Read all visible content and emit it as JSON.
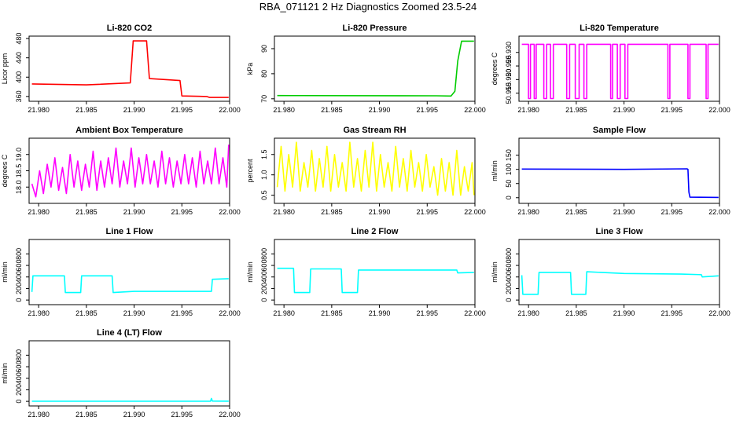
{
  "page": {
    "title": "RBA_071121  2 Hz Diagnostics Zoomed 23.5-24"
  },
  "chart_data": [
    {
      "type": "line",
      "title": "Li-820 CO2",
      "xlabel": "",
      "ylabel": "Licor ppm",
      "xlim": [
        21.979,
        22.0
      ],
      "ylim": [
        350,
        485
      ],
      "xticks": [
        21.98,
        21.985,
        21.99,
        21.995,
        22.0
      ],
      "xtick_labels": [
        "21.980",
        "21.985",
        "21.990",
        "21.995",
        "22.000"
      ],
      "yticks": [
        360,
        400,
        440,
        480
      ],
      "ytick_labels": [
        "360",
        "400",
        "440",
        "480"
      ],
      "series": [
        {
          "color": "#ff0000",
          "x": [
            21.9793,
            21.985,
            21.9896,
            21.9899,
            21.9913,
            21.9916,
            21.9948,
            21.995,
            21.9976,
            21.9979,
            21.9999
          ],
          "y": [
            386,
            384,
            388,
            475,
            475,
            397,
            393,
            361,
            360,
            358,
            358
          ]
        }
      ]
    },
    {
      "type": "line",
      "title": "Li-820 Pressure",
      "xlabel": "",
      "ylabel": "kPa",
      "xlim": [
        21.979,
        22.0
      ],
      "ylim": [
        69,
        95
      ],
      "xticks": [
        21.98,
        21.985,
        21.99,
        21.995,
        22.0
      ],
      "xtick_labels": [
        "21.980",
        "21.985",
        "21.990",
        "21.995",
        "22.000"
      ],
      "yticks": [
        70,
        80,
        90
      ],
      "ytick_labels": [
        "70",
        "80",
        "90"
      ],
      "series": [
        {
          "color": "#00cc00",
          "x": [
            21.9793,
            21.996,
            21.9975,
            21.9979,
            21.9982,
            21.9986,
            21.9999
          ],
          "y": [
            71.3,
            71.2,
            71.1,
            73,
            85,
            93,
            93
          ]
        }
      ]
    },
    {
      "type": "line",
      "title": "Li-820 Temperature",
      "xlabel": "",
      "ylabel": "degrees C",
      "xlim": [
        21.979,
        22.0
      ],
      "ylim": [
        50.912,
        50.936
      ],
      "xticks": [
        21.98,
        21.985,
        21.99,
        21.995,
        22.0
      ],
      "xtick_labels": [
        "21.980",
        "21.985",
        "21.990",
        "21.995",
        "22.000"
      ],
      "yticks": [
        50.915,
        50.92,
        50.925,
        50.93
      ],
      "ytick_labels": [
        "50.915",
        "50.920",
        "50.925",
        "50.930"
      ],
      "series": [
        {
          "color": "#ff00ff",
          "x": [
            21.9793,
            21.98,
            21.98,
            21.9802,
            21.9802,
            21.9806,
            21.9806,
            21.9808,
            21.9808,
            21.9816,
            21.9816,
            21.9819,
            21.9819,
            21.9823,
            21.9823,
            21.9826,
            21.9826,
            21.984,
            21.984,
            21.9843,
            21.9843,
            21.9849,
            21.9849,
            21.9853,
            21.9853,
            21.9858,
            21.9858,
            21.9861,
            21.9861,
            21.9886,
            21.9886,
            21.9888,
            21.9888,
            21.9893,
            21.9893,
            21.9896,
            21.9896,
            21.9901,
            21.9901,
            21.9904,
            21.9904,
            21.9946,
            21.9946,
            21.9948,
            21.9948,
            21.9967,
            21.9967,
            21.9969,
            21.9969,
            21.9986,
            21.9986,
            21.9988,
            21.9988,
            21.9999
          ],
          "y": [
            50.933,
            50.933,
            50.913,
            50.913,
            50.933,
            50.933,
            50.913,
            50.913,
            50.933,
            50.933,
            50.913,
            50.913,
            50.933,
            50.933,
            50.913,
            50.913,
            50.933,
            50.933,
            50.913,
            50.913,
            50.933,
            50.933,
            50.913,
            50.913,
            50.933,
            50.933,
            50.913,
            50.913,
            50.933,
            50.933,
            50.913,
            50.913,
            50.933,
            50.933,
            50.913,
            50.913,
            50.933,
            50.933,
            50.913,
            50.913,
            50.933,
            50.933,
            50.913,
            50.913,
            50.933,
            50.933,
            50.913,
            50.913,
            50.933,
            50.933,
            50.913,
            50.913,
            50.933,
            50.933
          ]
        }
      ]
    },
    {
      "type": "line",
      "title": "Ambient Box Temperature",
      "xlabel": "",
      "ylabel": "degrees C",
      "xlim": [
        21.979,
        22.0
      ],
      "ylim": [
        17.5,
        19.5
      ],
      "xticks": [
        21.98,
        21.985,
        21.99,
        21.995,
        22.0
      ],
      "xtick_labels": [
        "21.980",
        "21.985",
        "21.990",
        "21.995",
        "22.000"
      ],
      "yticks": [
        18.0,
        18.5,
        19.0
      ],
      "ytick_labels": [
        "18.0",
        "18.5",
        "19.0"
      ],
      "series": [
        {
          "color": "#ff00ff",
          "x": [
            21.9793,
            21.9797,
            21.9801,
            21.9805,
            21.9809,
            21.9813,
            21.9817,
            21.9821,
            21.9825,
            21.9829,
            21.9833,
            21.9837,
            21.9841,
            21.9845,
            21.9849,
            21.9853,
            21.9857,
            21.9861,
            21.9865,
            21.9869,
            21.9873,
            21.9877,
            21.9881,
            21.9885,
            21.9889,
            21.9893,
            21.9897,
            21.9901,
            21.9905,
            21.9909,
            21.9913,
            21.9917,
            21.9921,
            21.9925,
            21.9929,
            21.9933,
            21.9937,
            21.9941,
            21.9945,
            21.9949,
            21.9953,
            21.9957,
            21.9961,
            21.9965,
            21.9969,
            21.9973,
            21.9977,
            21.9981,
            21.9985,
            21.9989,
            21.9993,
            21.9997,
            21.9999
          ],
          "y": [
            18.1,
            17.7,
            18.5,
            17.8,
            18.7,
            18.0,
            18.9,
            17.9,
            18.6,
            17.8,
            19.0,
            18.0,
            18.8,
            17.9,
            18.7,
            18.0,
            19.1,
            17.9,
            18.8,
            18.0,
            18.9,
            18.1,
            19.2,
            18.0,
            18.8,
            18.1,
            19.2,
            18.0,
            18.9,
            18.1,
            19.0,
            18.1,
            18.8,
            18.0,
            19.1,
            18.1,
            18.9,
            18.0,
            18.8,
            18.1,
            19.0,
            18.1,
            18.9,
            18.0,
            19.1,
            18.1,
            18.8,
            18.1,
            19.2,
            18.1,
            18.9,
            18.0,
            19.3
          ]
        }
      ]
    },
    {
      "type": "line",
      "title": "Gas Stream RH",
      "xlabel": "",
      "ylabel": "percent",
      "xlim": [
        21.979,
        22.0
      ],
      "ylim": [
        0.3,
        1.9
      ],
      "xticks": [
        21.98,
        21.985,
        21.99,
        21.995,
        22.0
      ],
      "xtick_labels": [
        "21.980",
        "21.985",
        "21.990",
        "21.995",
        "22.000"
      ],
      "yticks": [
        0.5,
        1.0,
        1.5
      ],
      "ytick_labels": [
        "0.5",
        "1.0",
        "1.5"
      ],
      "series": [
        {
          "color": "#ffff00",
          "x": [
            21.9793,
            21.9797,
            21.9801,
            21.9805,
            21.9809,
            21.9813,
            21.9817,
            21.9821,
            21.9825,
            21.9829,
            21.9833,
            21.9837,
            21.9841,
            21.9845,
            21.9849,
            21.9853,
            21.9857,
            21.9861,
            21.9865,
            21.9869,
            21.9873,
            21.9877,
            21.9881,
            21.9885,
            21.9889,
            21.9893,
            21.9897,
            21.9901,
            21.9905,
            21.9909,
            21.9913,
            21.9917,
            21.9921,
            21.9925,
            21.9929,
            21.9933,
            21.9937,
            21.9941,
            21.9945,
            21.9949,
            21.9953,
            21.9957,
            21.9961,
            21.9965,
            21.9969,
            21.9973,
            21.9977,
            21.9981,
            21.9985,
            21.9989,
            21.9993,
            21.9997,
            21.9999
          ],
          "y": [
            0.7,
            1.7,
            0.6,
            1.5,
            0.7,
            1.8,
            0.6,
            1.3,
            0.7,
            1.6,
            0.6,
            1.4,
            0.7,
            1.7,
            0.6,
            1.5,
            0.7,
            1.3,
            0.6,
            1.8,
            0.7,
            1.4,
            0.6,
            1.6,
            0.7,
            1.8,
            0.6,
            1.5,
            0.7,
            1.3,
            0.6,
            1.7,
            0.7,
            1.4,
            0.6,
            1.6,
            0.7,
            1.3,
            0.6,
            1.5,
            0.7,
            1.2,
            0.5,
            1.4,
            0.6,
            1.3,
            0.5,
            1.6,
            0.5,
            1.2,
            0.6,
            1.3,
            0.5
          ]
        }
      ]
    },
    {
      "type": "line",
      "title": "Sample Flow",
      "xlabel": "",
      "ylabel": "ml/min",
      "xlim": [
        21.979,
        22.0
      ],
      "ylim": [
        -20,
        210
      ],
      "xticks": [
        21.98,
        21.985,
        21.99,
        21.995,
        22.0
      ],
      "xtick_labels": [
        "21.980",
        "21.985",
        "21.990",
        "21.995",
        "22.000"
      ],
      "yticks": [
        0,
        50,
        100,
        150
      ],
      "ytick_labels": [
        "0",
        "50",
        "100",
        "150"
      ],
      "series": [
        {
          "color": "#0000ff",
          "x": [
            21.9793,
            21.99,
            21.9966,
            21.9967,
            21.9968,
            21.9969,
            21.9999
          ],
          "y": [
            101,
            100,
            102,
            100,
            20,
            2,
            1
          ]
        }
      ]
    },
    {
      "type": "line",
      "title": "Line 1 Flow",
      "xlabel": "",
      "ylabel": "ml/min",
      "xlim": [
        21.979,
        22.0
      ],
      "ylim": [
        -80,
        1050
      ],
      "xticks": [
        21.98,
        21.985,
        21.99,
        21.995,
        22.0
      ],
      "xtick_labels": [
        "21.980",
        "21.985",
        "21.990",
        "21.995",
        "22.000"
      ],
      "yticks": [
        0,
        200,
        400,
        600,
        800
      ],
      "ytick_labels": [
        "0",
        "200",
        "400",
        "600",
        "800"
      ],
      "series": [
        {
          "color": "#00ffff",
          "x": [
            21.9793,
            21.9794,
            21.9827,
            21.9828,
            21.9844,
            21.9845,
            21.9877,
            21.9878,
            21.99,
            21.9981,
            21.9982,
            21.9999
          ],
          "y": [
            140,
            420,
            420,
            130,
            130,
            420,
            420,
            130,
            150,
            150,
            360,
            370
          ]
        }
      ]
    },
    {
      "type": "line",
      "title": "Line 2 Flow",
      "xlabel": "",
      "ylabel": "ml/min",
      "xlim": [
        21.979,
        22.0
      ],
      "ylim": [
        -80,
        1050
      ],
      "xticks": [
        21.98,
        21.985,
        21.99,
        21.995,
        22.0
      ],
      "xtick_labels": [
        "21.980",
        "21.985",
        "21.990",
        "21.995",
        "22.000"
      ],
      "yticks": [
        0,
        200,
        400,
        600,
        800
      ],
      "ytick_labels": [
        "0",
        "200",
        "400",
        "600",
        "800"
      ],
      "series": [
        {
          "color": "#00ffff",
          "x": [
            21.9793,
            21.981,
            21.9811,
            21.9827,
            21.9828,
            21.986,
            21.9861,
            21.9877,
            21.9878,
            21.9981,
            21.9982,
            21.9999
          ],
          "y": [
            550,
            550,
            130,
            130,
            540,
            540,
            130,
            130,
            520,
            520,
            470,
            480
          ]
        }
      ]
    },
    {
      "type": "line",
      "title": "Line 3 Flow",
      "xlabel": "",
      "ylabel": "ml/min",
      "xlim": [
        21.979,
        22.0
      ],
      "ylim": [
        -80,
        1050
      ],
      "xticks": [
        21.98,
        21.985,
        21.99,
        21.995,
        22.0
      ],
      "xtick_labels": [
        "21.980",
        "21.985",
        "21.990",
        "21.995",
        "22.000"
      ],
      "yticks": [
        0,
        200,
        400,
        600,
        800
      ],
      "ytick_labels": [
        "0",
        "200",
        "400",
        "600",
        "800"
      ],
      "series": [
        {
          "color": "#00ffff",
          "x": [
            21.9793,
            21.9794,
            21.981,
            21.9811,
            21.9844,
            21.9845,
            21.986,
            21.9861,
            21.99,
            21.996,
            21.9981,
            21.9982,
            21.9999
          ],
          "y": [
            430,
            100,
            100,
            480,
            480,
            100,
            100,
            490,
            460,
            450,
            440,
            400,
            420
          ]
        }
      ]
    },
    {
      "type": "line",
      "title": "Line 4 (LT) Flow",
      "xlabel": "",
      "ylabel": "ml/min",
      "xlim": [
        21.979,
        22.0
      ],
      "ylim": [
        -80,
        1050
      ],
      "xticks": [
        21.98,
        21.985,
        21.99,
        21.995,
        22.0
      ],
      "xtick_labels": [
        "21.980",
        "21.985",
        "21.990",
        "21.995",
        "22.000"
      ],
      "yticks": [
        0,
        200,
        400,
        600,
        800
      ],
      "ytick_labels": [
        "0",
        "200",
        "400",
        "600",
        "800"
      ],
      "series": [
        {
          "color": "#00ffff",
          "x": [
            21.9793,
            21.998,
            21.9981,
            21.9982,
            21.9999
          ],
          "y": [
            2,
            2,
            50,
            5,
            3
          ]
        }
      ]
    }
  ]
}
